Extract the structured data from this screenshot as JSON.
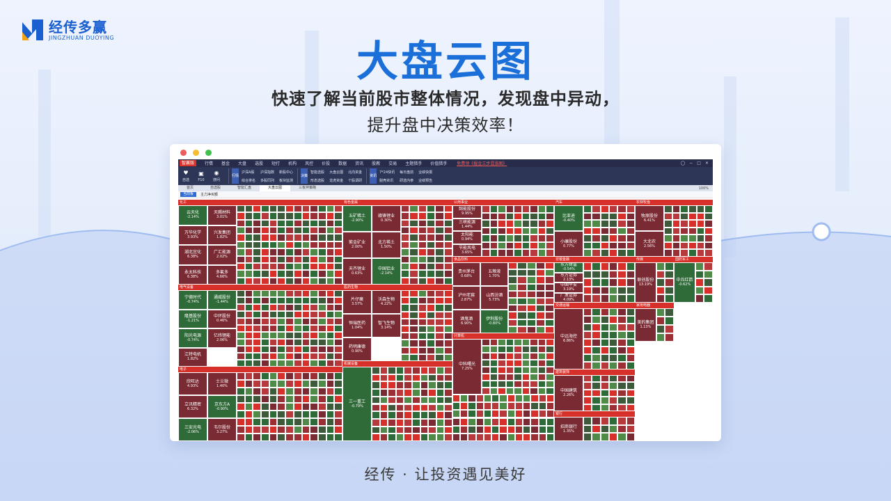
{
  "brand": {
    "name": "经传多赢",
    "name_en": "JINGZHUAN DUOYING"
  },
  "headline": "大盘云图",
  "subtitle_line1": "快速了解当前股市整体情况，发现盘中异动，",
  "subtitle_line2": "提升盘中决策效率！",
  "slogan": "经传 · 让投资遇见美好",
  "colors": {
    "accent": "#1b6fd9",
    "up": "#d7302b",
    "down": "#2f6b38",
    "up_dark": "#7a2a33",
    "down_dark": "#3d5a3a"
  },
  "app": {
    "logo": "智赢版",
    "menus": [
      "行情",
      "基金",
      "大盘",
      "选股",
      "短打",
      "机构",
      "风控",
      "价投",
      "数据",
      "资讯",
      "股教",
      "交易",
      "主题猎手",
      "价值猎手"
    ],
    "promo": "免费领《掘金三步混涨图》",
    "toolbar_left": [
      {
        "label": "自选",
        "icon": "heart-icon"
      },
      {
        "label": "F10",
        "icon": "doc-icon"
      },
      {
        "label": "搜问",
        "icon": "chat-icon"
      }
    ],
    "groups": [
      {
        "head": "行情",
        "items": [
          "沪深A股",
          "沪深指数",
          "新股中心",
          "综合排名",
          "多股同列",
          "板块监测"
        ]
      },
      {
        "head": "决策",
        "items": [
          "智能选股",
          "大盘云图",
          "北向资金",
          "形态选股",
          "龙虎资金",
          "个股调研"
        ]
      },
      {
        "head": "资讯",
        "items": [
          "7*24快讯",
          "每日盘前",
          "业绩快报",
          "脱壳资讯",
          "研选内参",
          "业绩预告"
        ]
      }
    ],
    "tabs": [
      "首页",
      "自选股",
      "智能汇盘",
      "大盘云图",
      "三板斧策略"
    ],
    "active_tab": "大盘云图",
    "zoom": "100%",
    "filter_button": "当前板",
    "filter_label": "主力净买额"
  },
  "sectors": [
    {
      "name": "化工",
      "stocks": [
        {
          "name": "云天化",
          "change": "-2.14%",
          "dir": "down"
        },
        {
          "name": "万华化学",
          "change": "3.93%",
          "dir": "up"
        },
        {
          "name": "湖北宜化",
          "change": "6.38%",
          "dir": "up"
        },
        {
          "name": "永太科技",
          "change": "6.38%",
          "dir": "up"
        },
        {
          "name": "天赐材料",
          "change": "3.01%",
          "dir": "up"
        },
        {
          "name": "兴发集团",
          "change": "1.82%",
          "dir": "up"
        },
        {
          "name": "广汇能源",
          "change": "2.02%",
          "dir": "up"
        },
        {
          "name": "多氟多",
          "change": "4.66%",
          "dir": "up"
        }
      ]
    },
    {
      "name": "有色金属",
      "stocks": [
        {
          "name": "五矿稀土",
          "change": "-2.90%",
          "dir": "down"
        },
        {
          "name": "紫金矿业",
          "change": "2.00%",
          "dir": "up"
        },
        {
          "name": "天齐锂业",
          "change": "0.63%",
          "dir": "up"
        },
        {
          "name": "赣锋锂业",
          "change": "0.30%",
          "dir": "up"
        },
        {
          "name": "北方稀土",
          "change": "1.50%",
          "dir": "up"
        },
        {
          "name": "中国铝业",
          "change": "-2.14%",
          "dir": "down"
        }
      ]
    },
    {
      "name": "公用事业",
      "stocks": [
        {
          "name": "韶能股份",
          "change": "9.95%",
          "dir": "up"
        },
        {
          "name": "三峡能源",
          "change": "1.44%",
          "dir": "up"
        },
        {
          "name": "太阳能",
          "change": "0.94%",
          "dir": "up"
        },
        {
          "name": "节能风电",
          "change": "3.65%",
          "dir": "up"
        }
      ]
    },
    {
      "name": "汽车",
      "stocks": [
        {
          "name": "比亚迪",
          "change": "-0.40%",
          "dir": "down"
        },
        {
          "name": "小康股份",
          "change": "0.77%",
          "dir": "up"
        }
      ]
    },
    {
      "name": "农林牧渔",
      "stocks": [
        {
          "name": "牧原股份",
          "change": "6.41%",
          "dir": "up"
        },
        {
          "name": "大北农",
          "change": "2.56%",
          "dir": "up"
        }
      ]
    },
    {
      "name": "非银金融",
      "stocks": [
        {
          "name": "东方财富",
          "change": "-0.54%",
          "dir": "down"
        },
        {
          "name": "东方证券",
          "change": "2.13%",
          "dir": "up"
        },
        {
          "name": "中国平安",
          "change": "3.19%",
          "dir": "up"
        },
        {
          "name": "广发证券",
          "change": "4.09%",
          "dir": "up"
        }
      ]
    },
    {
      "name": "传媒",
      "stocks": [
        {
          "name": "联创股份",
          "change": "13.19%",
          "dir": "up"
        }
      ]
    },
    {
      "name": "国防军工",
      "stocks": [
        {
          "name": "中兵红箭",
          "change": "-0.62%",
          "dir": "down"
        }
      ]
    },
    {
      "name": "食品饮料",
      "stocks": [
        {
          "name": "贵州茅台",
          "change": "0.68%",
          "dir": "up"
        },
        {
          "name": "泸州老窖",
          "change": "2.87%",
          "dir": "up"
        },
        {
          "name": "酒鬼酒",
          "change": "6.90%",
          "dir": "up"
        },
        {
          "name": "五粮液",
          "change": "1.70%",
          "dir": "up"
        },
        {
          "name": "山西汾酒",
          "change": "5.73%",
          "dir": "up"
        },
        {
          "name": "伊利股份",
          "change": "-0.80%",
          "dir": "down"
        }
      ]
    },
    {
      "name": "医药生物",
      "stocks": [
        {
          "name": "片仔癀",
          "change": "3.57%",
          "dir": "up"
        },
        {
          "name": "恒瑞医药",
          "change": "1.04%",
          "dir": "up"
        },
        {
          "name": "药明康德",
          "change": "0.90%",
          "dir": "up"
        },
        {
          "name": "沃森生物",
          "change": "4.22%",
          "dir": "up"
        },
        {
          "name": "智飞生物",
          "change": "3.14%",
          "dir": "up"
        }
      ]
    },
    {
      "name": "电气设备",
      "stocks": [
        {
          "name": "宁德时代",
          "change": "-0.74%",
          "dir": "down"
        },
        {
          "name": "隆基股份",
          "change": "-1.21%",
          "dir": "down"
        },
        {
          "name": "阳光电源",
          "change": "-0.74%",
          "dir": "down"
        },
        {
          "name": "江特电机",
          "change": "1.82%",
          "dir": "up"
        },
        {
          "name": "通威股份",
          "change": "-1.44%",
          "dir": "down"
        },
        {
          "name": "中环股份",
          "change": "0.46%",
          "dir": "up"
        },
        {
          "name": "亿纬锂能",
          "change": "2.06%",
          "dir": "up"
        }
      ]
    },
    {
      "name": "电子",
      "stocks": [
        {
          "name": "欣旺达",
          "change": "4.93%",
          "dir": "up"
        },
        {
          "name": "立讯精密",
          "change": "6.32%",
          "dir": "up"
        },
        {
          "name": "三安光电",
          "change": "-2.06%",
          "dir": "down"
        },
        {
          "name": "士兰微",
          "change": "1.40%",
          "dir": "up"
        },
        {
          "name": "京东方A",
          "change": "-0.90%",
          "dir": "down"
        },
        {
          "name": "韦尔股份",
          "change": "3.27%",
          "dir": "up"
        }
      ]
    },
    {
      "name": "机械设备",
      "stocks": [
        {
          "name": "三一重工",
          "change": "-0.79%",
          "dir": "down"
        }
      ]
    },
    {
      "name": "计算机",
      "stocks": [
        {
          "name": "中科曙光",
          "change": "7.25%",
          "dir": "up"
        }
      ]
    },
    {
      "name": "交通运输",
      "stocks": [
        {
          "name": "中远海控",
          "change": "6.86%",
          "dir": "up"
        }
      ]
    },
    {
      "name": "建筑装饰",
      "stocks": [
        {
          "name": "中国建筑",
          "change": "2.26%",
          "dir": "up"
        }
      ]
    },
    {
      "name": "银行",
      "stocks": [
        {
          "name": "招商银行",
          "change": "1.35%",
          "dir": "up"
        }
      ]
    },
    {
      "name": "家用电器",
      "stocks": [
        {
          "name": "美的集团",
          "change": "1.13%",
          "dir": "up"
        }
      ]
    }
  ]
}
